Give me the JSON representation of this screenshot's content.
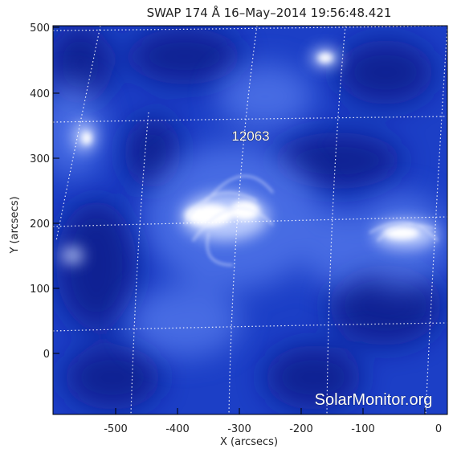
{
  "title": "SWAP 174 Å 16–May–2014 19:56:48.421",
  "active_region_label": "12063",
  "watermark": "SolarMonitor.org",
  "x_axis": {
    "label": "X (arcsecs)",
    "ticks": [
      "-500",
      "-400",
      "-300",
      "-200",
      "-100",
      "0"
    ]
  },
  "y_axis": {
    "label": "Y (arcsecs)",
    "ticks": [
      "500",
      "400",
      "300",
      "200",
      "100",
      "0"
    ]
  },
  "colors": {
    "image_base": "#1c3fc6",
    "image_dark": "#0a1f8a",
    "image_bright": "#e8eeff",
    "grid": "#ffffff"
  },
  "icons": {
    "watermark_logo": "solarmonitor-wordmark"
  }
}
